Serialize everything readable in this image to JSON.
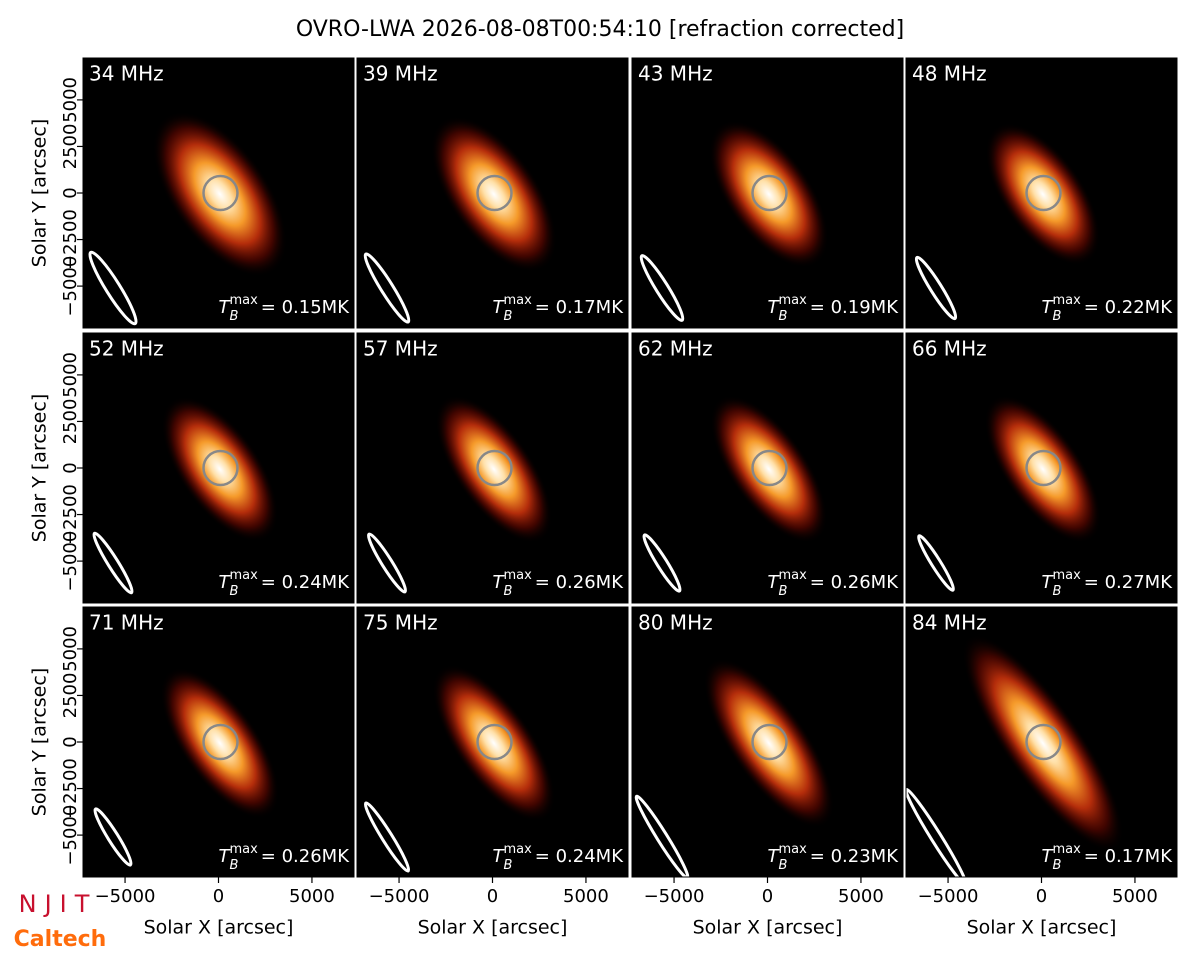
{
  "title": "OVRO-LWA 2026-08-08T00:54:10 [refraction corrected]",
  "logos": [
    "NJIT",
    "Caltech"
  ],
  "chart_data": [
    {
      "type": "image",
      "title": "34 MHz",
      "annotation": {
        "symbol": "T",
        "subscript": "B",
        "superscript": "max",
        "text": "= 0.15MK"
      },
      "xlim": [
        -7250,
        7250
      ],
      "ylim": [
        -7250,
        7250
      ],
      "ylabel": "Solar Y [arcsec]",
      "yticks": [
        {
          "value": -5000,
          "label": "−5000"
        },
        {
          "value": -2500,
          "label": "−2500"
        },
        0,
        2500,
        5000
      ]
    },
    {
      "type": "image",
      "title": "39 MHz",
      "annotation": {
        "symbol": "T",
        "subscript": "B",
        "superscript": "max",
        "text": "= 0.17MK"
      },
      "xlim": [
        -7250,
        7250
      ],
      "ylim": [
        -7250,
        7250
      ]
    },
    {
      "type": "image",
      "title": "43 MHz",
      "annotation": {
        "symbol": "T",
        "subscript": "B",
        "superscript": "max",
        "text": "= 0.19MK"
      },
      "xlim": [
        -7250,
        7250
      ],
      "ylim": [
        -7250,
        7250
      ]
    },
    {
      "type": "image",
      "title": "48 MHz",
      "annotation": {
        "symbol": "T",
        "subscript": "B",
        "superscript": "max",
        "text": "= 0.22MK"
      },
      "xlim": [
        -7250,
        7250
      ],
      "ylim": [
        -7250,
        7250
      ]
    },
    {
      "type": "image",
      "title": "52 MHz",
      "annotation": {
        "symbol": "T",
        "subscript": "B",
        "superscript": "max",
        "text": "= 0.24MK"
      },
      "xlim": [
        -7250,
        7250
      ],
      "ylim": [
        -7250,
        7250
      ],
      "ylabel": "Solar Y [arcsec]",
      "yticks": [
        {
          "value": -5000,
          "label": "−5000"
        },
        {
          "value": -2500,
          "label": "−2500"
        },
        0,
        2500,
        5000
      ]
    },
    {
      "type": "image",
      "title": "57 MHz",
      "annotation": {
        "symbol": "T",
        "subscript": "B",
        "superscript": "max",
        "text": "= 0.26MK"
      },
      "xlim": [
        -7250,
        7250
      ],
      "ylim": [
        -7250,
        7250
      ]
    },
    {
      "type": "image",
      "title": "62 MHz",
      "annotation": {
        "symbol": "T",
        "subscript": "B",
        "superscript": "max",
        "text": "= 0.26MK"
      },
      "xlim": [
        -7250,
        7250
      ],
      "ylim": [
        -7250,
        7250
      ]
    },
    {
      "type": "image",
      "title": "66 MHz",
      "annotation": {
        "symbol": "T",
        "subscript": "B",
        "superscript": "max",
        "text": "= 0.27MK"
      },
      "xlim": [
        -7250,
        7250
      ],
      "ylim": [
        -7250,
        7250
      ]
    },
    {
      "type": "image",
      "title": "71 MHz",
      "annotation": {
        "symbol": "T",
        "subscript": "B",
        "superscript": "max",
        "text": "= 0.26MK"
      },
      "xlim": [
        -7250,
        7250
      ],
      "ylim": [
        -7250,
        7250
      ],
      "ylabel": "Solar Y [arcsec]",
      "yticks": [
        {
          "value": -5000,
          "label": "−5000"
        },
        {
          "value": -2500,
          "label": "−2500"
        },
        0,
        2500,
        5000
      ],
      "xlabel": "Solar X [arcsec]",
      "xticks": [
        {
          "value": -5000,
          "label": "−5000"
        },
        0,
        5000
      ]
    },
    {
      "type": "image",
      "title": "75 MHz",
      "annotation": {
        "symbol": "T",
        "subscript": "B",
        "superscript": "max",
        "text": "= 0.24MK"
      },
      "xlim": [
        -7250,
        7250
      ],
      "ylim": [
        -7250,
        7250
      ],
      "xlabel": "Solar X [arcsec]",
      "xticks": [
        {
          "value": -5000,
          "label": "−5000"
        },
        0,
        5000
      ]
    },
    {
      "type": "image",
      "title": "80 MHz",
      "annotation": {
        "symbol": "T",
        "subscript": "B",
        "superscript": "max",
        "text": "= 0.23MK"
      },
      "xlim": [
        -7250,
        7250
      ],
      "ylim": [
        -7250,
        7250
      ],
      "xlabel": "Solar X [arcsec]",
      "xticks": [
        {
          "value": -5000,
          "label": "−5000"
        },
        0,
        5000
      ]
    },
    {
      "type": "image",
      "title": "84 MHz",
      "annotation": {
        "symbol": "T",
        "subscript": "B",
        "superscript": "max",
        "text": "= 0.17MK"
      },
      "xlim": [
        -7250,
        7250
      ],
      "ylim": [
        -7250,
        7250
      ],
      "xlabel": "Solar X [arcsec]",
      "xticks": [
        {
          "value": -5000,
          "label": "−5000"
        },
        0,
        5000
      ]
    }
  ]
}
